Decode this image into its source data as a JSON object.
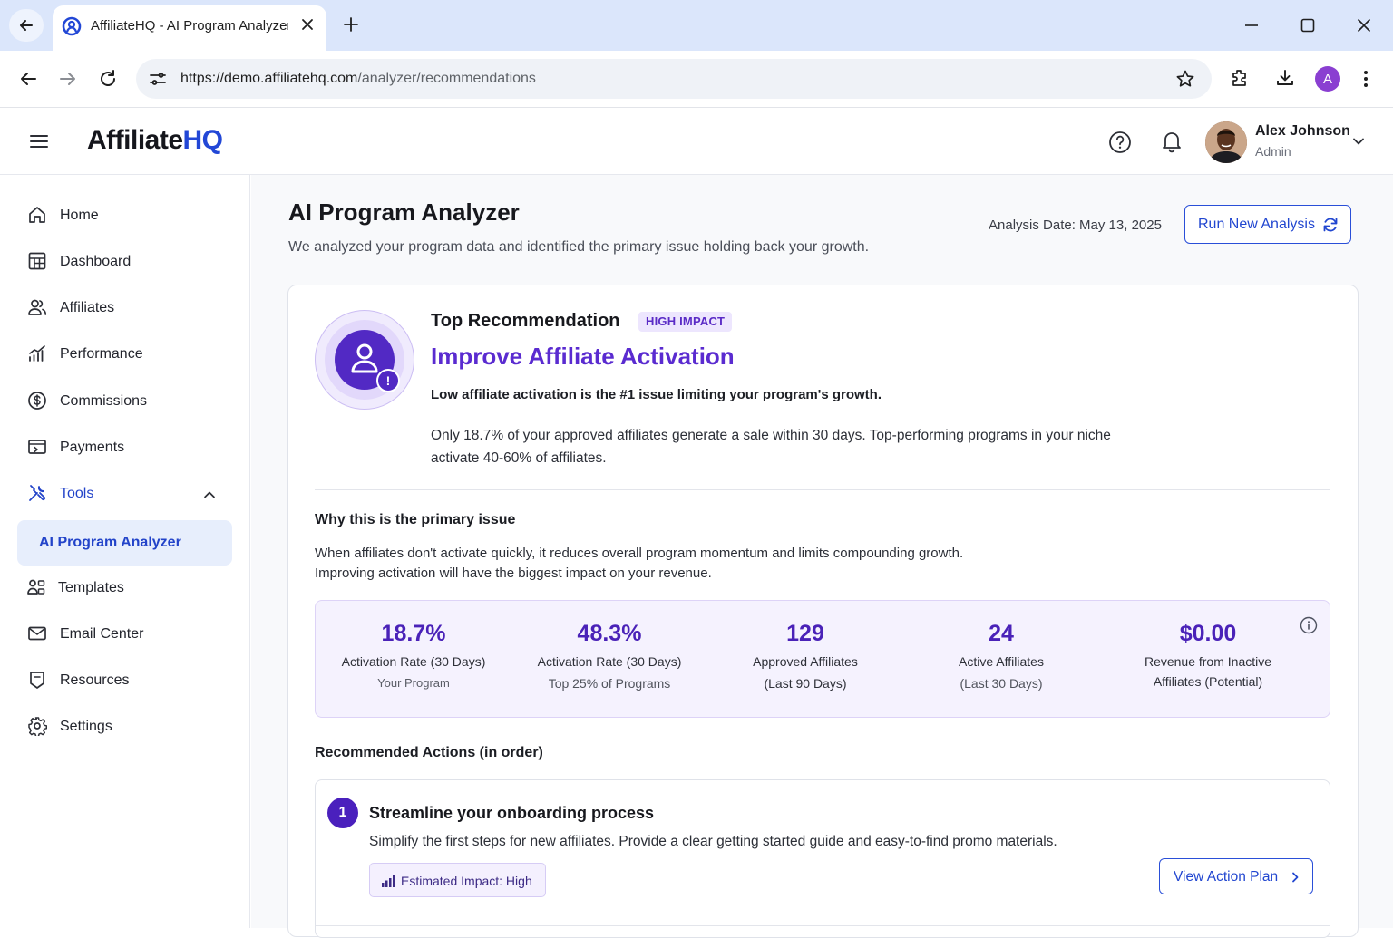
{
  "browser": {
    "tab_title": "AffiliateHQ - AI Program Analyzer",
    "url_host": "https://demo.affiliatehq.com",
    "url_path": "/analyzer/recommendations",
    "profile_initial": "A"
  },
  "header": {
    "logo_main": "Affiliate",
    "logo_accent": "HQ",
    "user_name": "Alex Johnson",
    "user_role": "Admin"
  },
  "sidebar": {
    "items": [
      {
        "label": "Home",
        "icon": "home-icon"
      },
      {
        "label": "Dashboard",
        "icon": "dashboard-icon"
      },
      {
        "label": "Affiliates",
        "icon": "users-icon"
      },
      {
        "label": "Performance",
        "icon": "chart-icon"
      },
      {
        "label": "Commissions",
        "icon": "dollar-icon"
      },
      {
        "label": "Payments",
        "icon": "payments-icon"
      },
      {
        "label": "Tools",
        "icon": "tools-icon"
      },
      {
        "label": "Templates",
        "icon": "templates-icon"
      },
      {
        "label": "Email Center",
        "icon": "mail-icon"
      },
      {
        "label": "Resources",
        "icon": "resources-icon"
      },
      {
        "label": "Settings",
        "icon": "gear-icon"
      }
    ],
    "sub_item": "AI Program Analyzer"
  },
  "page": {
    "title": "AI Program Analyzer",
    "subtitle": "We analyzed your program data and identified the primary issue holding back your growth.",
    "analysis_date": "Analysis Date: May 13, 2025",
    "run_button": "Run New Analysis"
  },
  "recommendation": {
    "heading": "Top Recommendation",
    "badge": "HIGH IMPACT",
    "title": "Improve Affiliate Activation",
    "summary": "Low affiliate activation is the #1 issue limiting your program's growth.",
    "description": "Only 18.7% of your approved affiliates generate a sale within 30 days. Top-performing programs in your niche activate 40-60% of affiliates.",
    "why_heading": "Why this is the primary issue",
    "why_line1": "When affiliates don't activate quickly, it reduces overall program momentum and limits compounding growth.",
    "why_line2": "Improving activation will have the biggest impact on your revenue."
  },
  "stats": [
    {
      "value": "18.7%",
      "label1": "Activation Rate (30 Days)",
      "label2": "Your Program"
    },
    {
      "value": "48.3%",
      "label1": "Activation Rate (30 Days)",
      "label2": "Top 25% of Programs"
    },
    {
      "value": "129",
      "label1": "Approved Affiliates",
      "label2": "(Last 90 Days)"
    },
    {
      "value": "24",
      "label1": "Active Affiliates",
      "label2": "(Last 30 Days)"
    },
    {
      "value": "$0.00",
      "label1": "Revenue from Inactive",
      "label2": "Affiliates (Potential)"
    }
  ],
  "actions": {
    "heading": "Recommended Actions (in order)",
    "items": [
      {
        "number": "1",
        "title": "Streamline your onboarding process",
        "description": "Simplify the first steps for new affiliates. Provide a clear getting started guide and easy-to-find promo materials.",
        "impact": "Estimated Impact: High",
        "button": "View Action Plan"
      }
    ]
  },
  "colors": {
    "accent_blue": "#2146d0",
    "accent_purple": "#5a2bd0",
    "tab_bar": "#dbe6fb"
  }
}
